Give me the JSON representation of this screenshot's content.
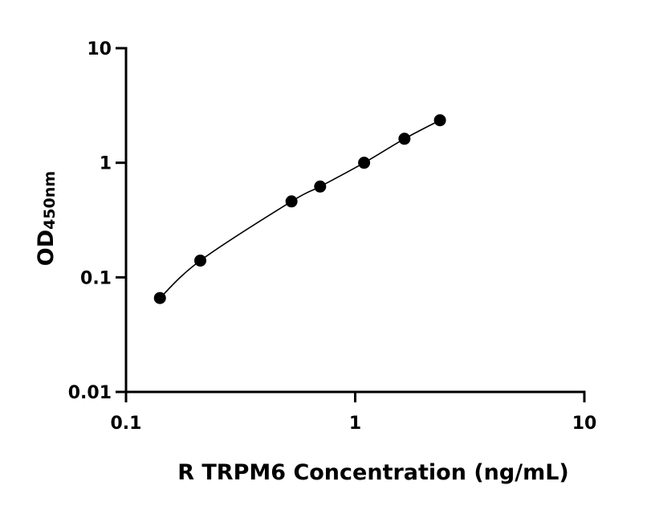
{
  "chart_data": {
    "type": "scatter",
    "xscale": "log",
    "yscale": "log",
    "xlim": [
      0.1,
      10
    ],
    "ylim": [
      0.01,
      10
    ],
    "xticks": [
      "0.1",
      "1",
      "10"
    ],
    "yticks": [
      "0.01",
      "0.1",
      "1",
      "10"
    ],
    "xlabel": "R TRPM6 Concentration (ng/mL)",
    "ylabel_main": "OD",
    "ylabel_sub": "450nm",
    "grid": false,
    "legend": "none",
    "series": [
      {
        "x": [
          0.1406,
          0.2109,
          0.5273,
          0.7031,
          1.0938,
          1.6406,
          2.3438
        ],
        "y": [
          0.066,
          0.14,
          0.46,
          0.62,
          1.0,
          1.62,
          2.35
        ]
      }
    ],
    "fit_curve": {
      "x": [
        0.1406,
        0.2109,
        0.5273,
        0.7031,
        1.0938,
        1.6406,
        2.3438
      ],
      "y": [
        0.066,
        0.14,
        0.46,
        0.62,
        1.0,
        1.62,
        2.35
      ]
    },
    "colors": {
      "points": "#000000",
      "axes": "#000000",
      "curve": "#000000"
    }
  }
}
